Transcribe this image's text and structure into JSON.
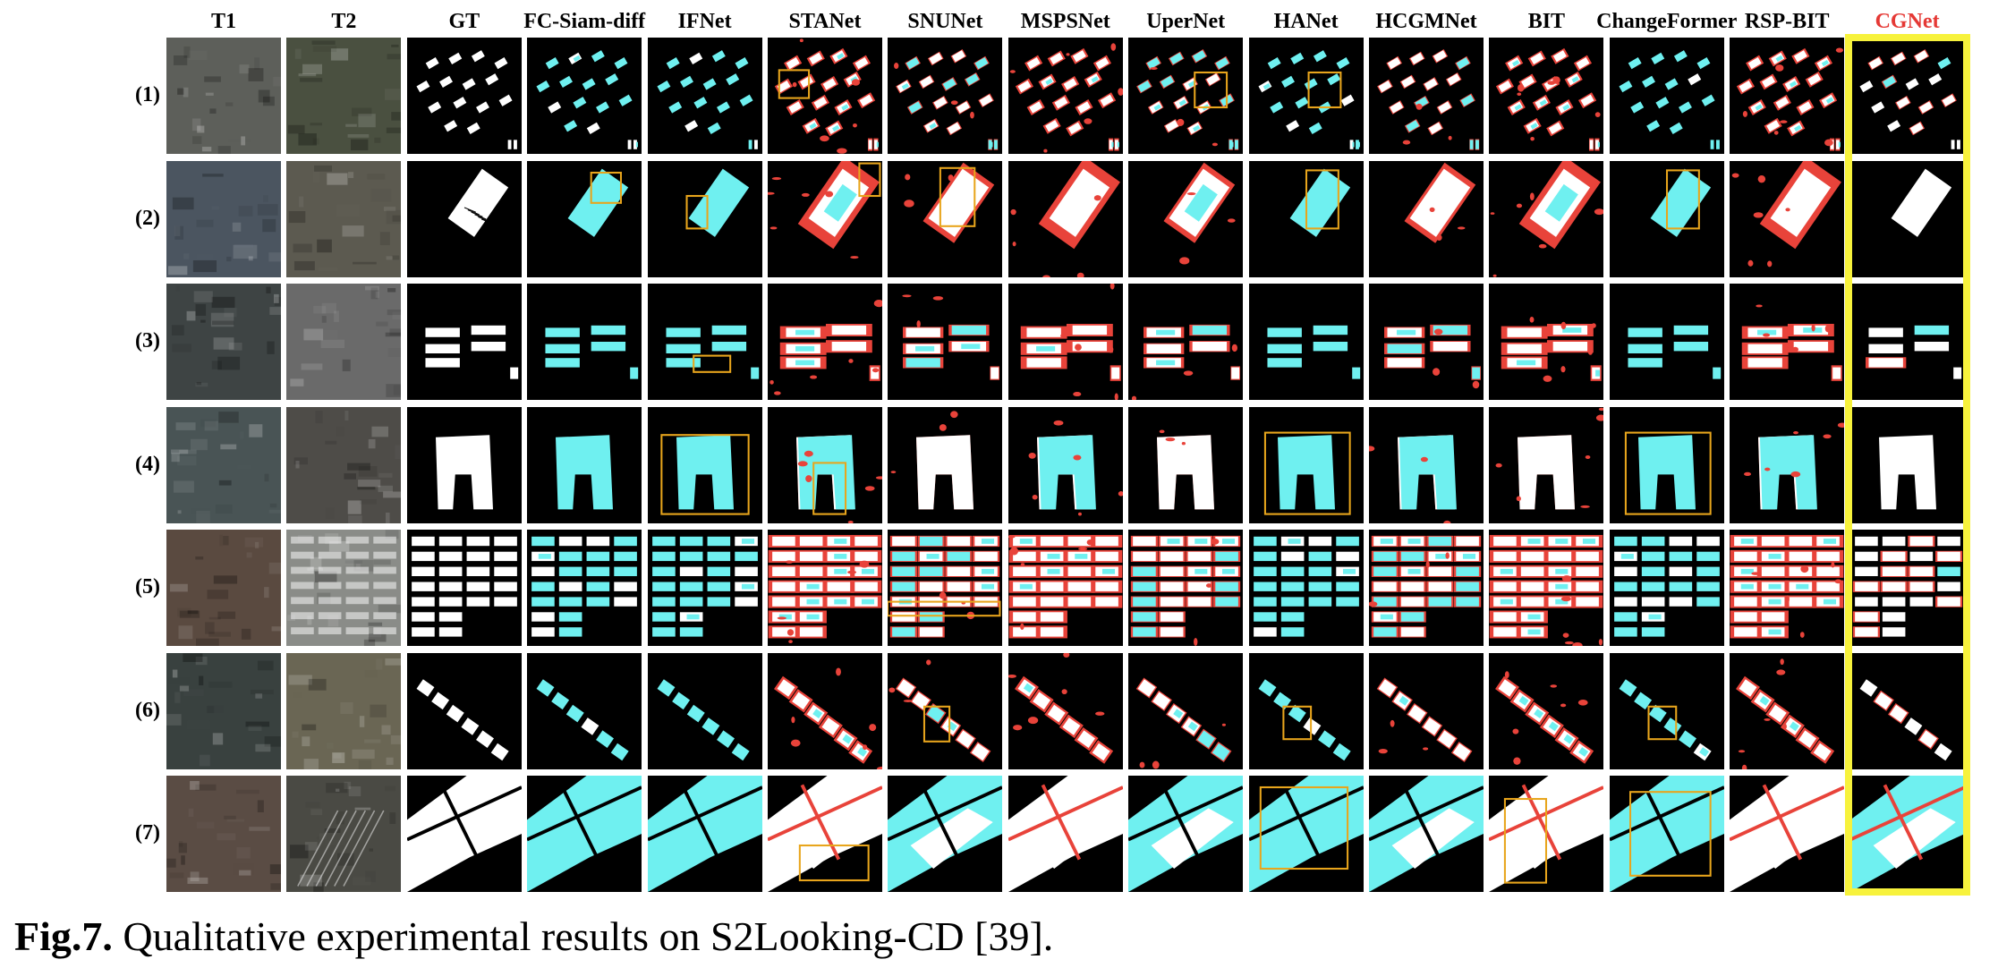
{
  "figure": {
    "columns": [
      "T1",
      "T2",
      "GT",
      "FC-Siam-diff",
      "IFNet",
      "STANet",
      "SNUNet",
      "MSPSNet",
      "UperNet",
      "HANet",
      "HCGMNet",
      "BIT",
      "ChangeFormer",
      "RSP-BIT",
      "CGNet"
    ],
    "highlighted_column": "CGNet",
    "rows": [
      "(1)",
      "(2)",
      "(3)",
      "(4)",
      "(5)",
      "(6)",
      "(7)"
    ],
    "caption_label": "Fig.7.",
    "caption_text": " Qualitative experimental results on S2Looking-CD [39]."
  },
  "colors": {
    "true_positive": "#ffffff",
    "false_positive": "#e8433a",
    "false_negative": "#6ff0f0",
    "true_negative": "#000000",
    "zoom_box": "#e8a51c",
    "highlight_frame": "#f7f23c",
    "highlight_label": "#e53935"
  }
}
